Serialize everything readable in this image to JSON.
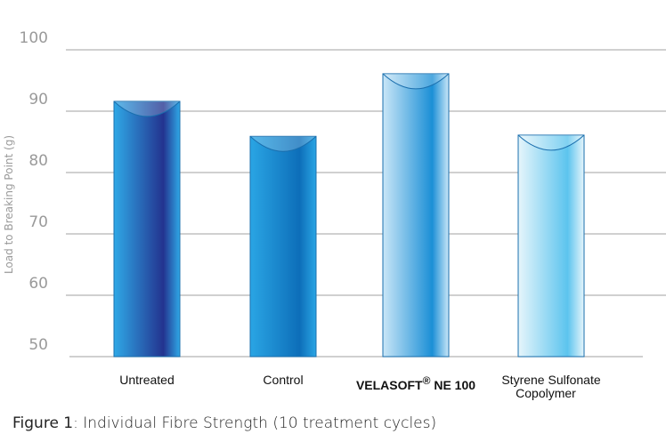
{
  "chart_data": {
    "type": "bar",
    "categories": [
      "Untreated",
      "Control",
      "VELASOFT® NE 100",
      "Styrene Sulfonate Copolymer"
    ],
    "category_lines": [
      [
        "Untreated"
      ],
      [
        "Control"
      ],
      [
        "VELASOFT",
        "®",
        " NE 100"
      ],
      [
        "Styrene Sulfonate",
        "Copolymer"
      ]
    ],
    "values": [
      91.6,
      85.9,
      96.1,
      86.1
    ],
    "ylabel": "Load to Breaking Point (g)",
    "xlabel": "",
    "ylim": [
      50,
      100
    ],
    "yticks": [
      "50",
      "60",
      "70",
      "80",
      "90",
      "100"
    ],
    "grid": true,
    "bar_styles": [
      {
        "light": "#2fa8e6",
        "dark": "#23338f"
      },
      {
        "light": "#2aa5e4",
        "dark": "#0d6eb9"
      },
      {
        "light": "#c9e6f7",
        "dark": "#1b8fd6"
      },
      {
        "light": "#e6f5fb",
        "dark": "#5cc4ee"
      }
    ]
  },
  "caption": {
    "label": "Figure 1",
    "text": ": Individual Fibre Strength (10 treatment cycles)"
  }
}
